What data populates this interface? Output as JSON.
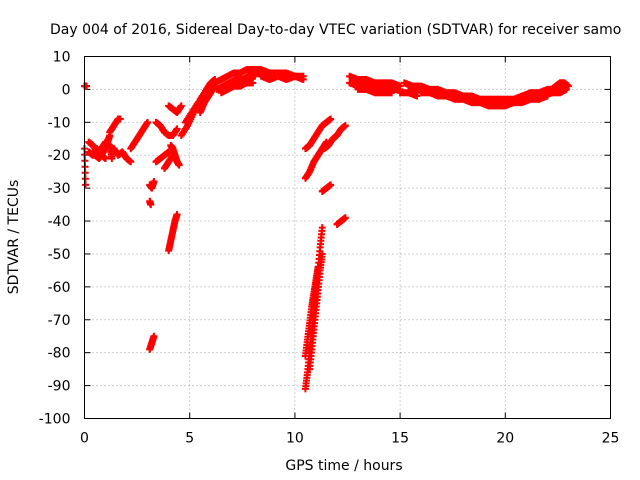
{
  "chart_data": {
    "type": "scatter",
    "title": "Day 004 of 2016, Sidereal Day-to-day VTEC variation (SDTVAR) for receiver samo",
    "xlabel": "GPS time / hours",
    "ylabel": "SDTVAR / TECUs",
    "xlim": [
      0,
      25
    ],
    "ylim": [
      -100,
      10
    ],
    "xticks": [
      "0",
      "5",
      "10",
      "15",
      "20",
      "25"
    ],
    "xtick_values": [
      0,
      5,
      10,
      15,
      20,
      25
    ],
    "yticks": [
      "10",
      "0",
      "-10",
      "-20",
      "-30",
      "-40",
      "-50",
      "-60",
      "-70",
      "-80",
      "-90",
      "-100"
    ],
    "ytick_values": [
      10,
      0,
      -10,
      -20,
      -30,
      -40,
      -50,
      -60,
      -70,
      -80,
      -90,
      -100
    ],
    "grid": true,
    "marker": "plus",
    "color": "#ff0000",
    "series": [
      {
        "name": "s01",
        "x": [
          0.0,
          0.1
        ],
        "y": [
          1,
          1
        ]
      },
      {
        "name": "s02",
        "x": [
          0.0,
          0.05
        ],
        "y": [
          -18,
          -29
        ]
      },
      {
        "name": "s03",
        "x": [
          0.2,
          0.4,
          0.6,
          0.8,
          1.0,
          1.2,
          1.3
        ],
        "y": [
          -16,
          -17,
          -19,
          -18,
          -16,
          -17,
          -21
        ]
      },
      {
        "name": "s04",
        "x": [
          0.2,
          0.4,
          0.6,
          0.8,
          1.0
        ],
        "y": [
          -19,
          -20,
          -18,
          -20,
          -21
        ]
      },
      {
        "name": "s05",
        "x": [
          0.5,
          0.7,
          0.9,
          1.1,
          1.2
        ],
        "y": [
          -20,
          -21,
          -19,
          -16,
          -14
        ]
      },
      {
        "name": "s06",
        "x": [
          1.2,
          1.4,
          1.6,
          1.7
        ],
        "y": [
          -13,
          -11,
          -9,
          -9
        ]
      },
      {
        "name": "s07",
        "x": [
          1.4,
          1.6,
          1.8,
          2.0,
          2.2
        ],
        "y": [
          -18,
          -20,
          -19,
          -21,
          -22
        ]
      },
      {
        "name": "s08",
        "x": [
          2.2,
          2.4,
          2.6,
          2.8,
          3.0
        ],
        "y": [
          -18,
          -16,
          -14,
          -12,
          -10
        ]
      },
      {
        "name": "s09",
        "x": [
          3.1,
          3.2,
          3.3
        ],
        "y": [
          -29,
          -30,
          -28
        ]
      },
      {
        "name": "s10",
        "x": [
          3.1,
          3.15
        ],
        "y": [
          -34,
          -35
        ]
      },
      {
        "name": "s11",
        "x": [
          3.1,
          3.2,
          3.3
        ],
        "y": [
          -79,
          -77,
          -75
        ]
      },
      {
        "name": "s12",
        "x": [
          3.4,
          3.6,
          3.8,
          4.0,
          4.2,
          4.4
        ],
        "y": [
          -10,
          -11,
          -13,
          -14,
          -14,
          -12
        ]
      },
      {
        "name": "s13",
        "x": [
          3.4,
          3.6,
          3.8,
          4.0
        ],
        "y": [
          -22,
          -21,
          -20,
          -19
        ]
      },
      {
        "name": "s14",
        "x": [
          3.8,
          4.0,
          4.2
        ],
        "y": [
          -24,
          -22,
          -20
        ]
      },
      {
        "name": "s15",
        "x": [
          4.1,
          4.2,
          4.3,
          4.4,
          4.5
        ],
        "y": [
          -17,
          -18,
          -20,
          -22,
          -23
        ]
      },
      {
        "name": "s16",
        "x": [
          4.0,
          4.1,
          4.2,
          4.3,
          4.4
        ],
        "y": [
          -49,
          -46,
          -43,
          -40,
          -38
        ]
      },
      {
        "name": "s17",
        "x": [
          4.0,
          4.2,
          4.4,
          4.6
        ],
        "y": [
          -5,
          -6,
          -7,
          -5
        ]
      },
      {
        "name": "s18",
        "x": [
          4.6,
          4.9,
          5.2,
          5.5,
          5.8,
          6.0,
          6.2
        ],
        "y": [
          -14,
          -11,
          -7,
          -3,
          0,
          2,
          3
        ]
      },
      {
        "name": "s19",
        "x": [
          4.8,
          5.1,
          5.4,
          5.7,
          6.0,
          6.2
        ],
        "y": [
          -10,
          -7,
          -4,
          -2,
          0,
          1
        ]
      },
      {
        "name": "s20",
        "x": [
          5.5,
          5.7,
          5.9,
          6.1
        ],
        "y": [
          -7,
          -4,
          -2,
          0
        ]
      },
      {
        "name": "s21",
        "x": [
          6.2,
          6.5,
          6.8,
          7.1,
          7.4,
          7.7,
          8.0,
          8.3,
          8.6
        ],
        "y": [
          2,
          3,
          4,
          5,
          5,
          6,
          6,
          5,
          5
        ]
      },
      {
        "name": "s22",
        "x": [
          6.3,
          6.6,
          6.9,
          7.2,
          7.5,
          7.8,
          8.1
        ],
        "y": [
          0,
          1,
          2,
          3,
          3,
          4,
          4
        ]
      },
      {
        "name": "s23",
        "x": [
          6.5,
          6.8,
          7.1,
          7.4,
          7.7,
          8.0
        ],
        "y": [
          -1,
          0,
          1,
          1,
          2,
          2
        ]
      },
      {
        "name": "s24",
        "x": [
          8.0,
          8.4,
          8.8,
          9.2,
          9.6,
          10.0,
          10.4
        ],
        "y": [
          6,
          6,
          5,
          5,
          5,
          4,
          4
        ]
      },
      {
        "name": "s25",
        "x": [
          8.4,
          8.8,
          9.2,
          9.6,
          10.0,
          10.4
        ],
        "y": [
          4,
          3,
          4,
          3,
          4,
          3
        ]
      },
      {
        "name": "s26",
        "x": [
          10.5,
          10.7,
          10.9,
          11.1,
          11.3,
          11.5,
          11.7
        ],
        "y": [
          -18,
          -17,
          -15,
          -13,
          -11,
          -10,
          -9
        ]
      },
      {
        "name": "s27",
        "x": [
          10.5,
          10.7,
          10.9,
          11.1,
          11.3,
          11.5
        ],
        "y": [
          -27,
          -25,
          -22,
          -20,
          -18,
          -16
        ]
      },
      {
        "name": "s28",
        "x": [
          11.4,
          11.6,
          11.8,
          12.0,
          12.2,
          12.4
        ],
        "y": [
          -18,
          -17,
          -15,
          -14,
          -12,
          -11
        ]
      },
      {
        "name": "s29",
        "x": [
          11.3,
          11.5,
          11.7
        ],
        "y": [
          -31,
          -30,
          -29
        ]
      },
      {
        "name": "s30",
        "x": [
          10.5,
          10.6,
          10.7,
          10.8,
          10.9,
          11.0,
          11.1,
          11.2,
          11.3
        ],
        "y": [
          -91,
          -86,
          -80,
          -74,
          -68,
          -61,
          -55,
          -48,
          -42
        ]
      },
      {
        "name": "s31",
        "x": [
          10.5,
          10.6,
          10.7,
          10.8,
          10.9,
          11.0,
          11.1
        ],
        "y": [
          -81,
          -76,
          -71,
          -66,
          -62,
          -58,
          -54
        ]
      },
      {
        "name": "s32",
        "x": [
          10.7,
          10.8,
          10.9,
          11.0,
          11.1,
          11.2,
          11.3
        ],
        "y": [
          -85,
          -79,
          -73,
          -67,
          -61,
          -55,
          -50
        ]
      },
      {
        "name": "s33",
        "x": [
          12.0,
          12.2,
          12.4
        ],
        "y": [
          -41,
          -40,
          -39
        ]
      },
      {
        "name": "s34",
        "x": [
          12.6,
          13.0,
          13.4,
          13.8,
          14.2,
          14.6,
          15.0
        ],
        "y": [
          4,
          3,
          3,
          2,
          2,
          2,
          1
        ]
      },
      {
        "name": "s35",
        "x": [
          12.6,
          13.0,
          13.4,
          13.8,
          14.2,
          14.6,
          15.0
        ],
        "y": [
          2,
          1,
          1,
          1,
          0,
          0,
          0
        ]
      },
      {
        "name": "s36",
        "x": [
          13.0,
          13.4,
          13.8,
          14.2,
          14.6
        ],
        "y": [
          0,
          0,
          -1,
          -1,
          -1
        ]
      },
      {
        "name": "s37",
        "x": [
          15.0,
          15.4,
          15.8
        ],
        "y": [
          -1,
          -1,
          -2
        ]
      },
      {
        "name": "s38",
        "x": [
          15.2,
          15.6,
          16.0,
          16.4,
          16.8,
          17.2,
          17.6,
          18.0,
          18.4,
          18.8,
          19.2,
          19.6,
          20.0,
          20.4,
          20.8,
          21.2,
          21.6,
          22.0,
          22.4,
          22.8
        ],
        "y": [
          2,
          1,
          1,
          0,
          0,
          -1,
          -1,
          -2,
          -2,
          -3,
          -3,
          -3,
          -3,
          -3,
          -2,
          -1,
          -1,
          0,
          0,
          0
        ]
      },
      {
        "name": "s39",
        "x": [
          15.4,
          15.8,
          16.2,
          16.6,
          17.0,
          17.4,
          17.8,
          18.2,
          18.6,
          19.0,
          19.4,
          19.8,
          20.2,
          20.6,
          21.0,
          21.4,
          21.8,
          22.2,
          22.6,
          22.9
        ],
        "y": [
          1,
          0,
          0,
          -1,
          -1,
          -2,
          -2,
          -3,
          -3,
          -4,
          -4,
          -4,
          -4,
          -3,
          -3,
          -2,
          -2,
          -1,
          -1,
          0
        ]
      },
      {
        "name": "s40",
        "x": [
          16.0,
          16.4,
          16.8,
          17.2,
          17.6,
          18.0,
          18.4,
          18.8,
          19.2,
          19.6,
          20.0,
          20.4,
          20.8,
          21.2,
          21.6,
          22.0
        ],
        "y": [
          -1,
          -1,
          -2,
          -2,
          -3,
          -3,
          -4,
          -4,
          -5,
          -5,
          -5,
          -4,
          -4,
          -3,
          -3,
          -2
        ]
      },
      {
        "name": "s41",
        "x": [
          22.0,
          22.2,
          22.4,
          22.6,
          22.8,
          23.0
        ],
        "y": [
          -1,
          0,
          1,
          2,
          2,
          1
        ]
      },
      {
        "name": "s42",
        "x": [
          21.6,
          21.8,
          22.0,
          22.2,
          22.4,
          22.6,
          22.8
        ],
        "y": [
          -3,
          -2,
          -1,
          -1,
          0,
          0,
          0
        ]
      }
    ]
  }
}
